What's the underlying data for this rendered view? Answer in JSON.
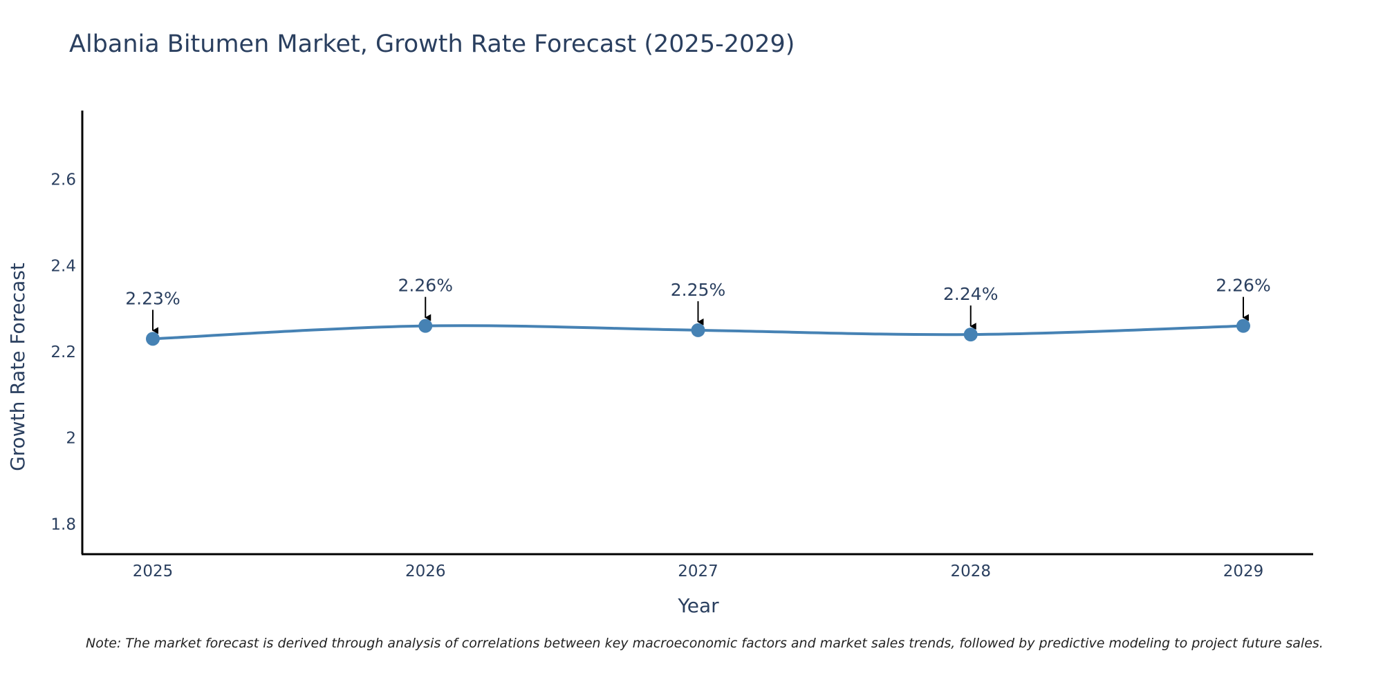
{
  "chart_data": {
    "type": "line",
    "title": "Albania Bitumen Market, Growth Rate Forecast (2025-2029)",
    "xlabel": "Year",
    "ylabel": "Growth Rate Forecast",
    "categories": [
      "2025",
      "2026",
      "2027",
      "2028",
      "2029"
    ],
    "series": [
      {
        "name": "Growth Rate Forecast",
        "values": [
          2.23,
          2.26,
          2.25,
          2.24,
          2.26
        ],
        "labels": [
          "2.23%",
          "2.26%",
          "2.25%",
          "2.24%",
          "2.26%"
        ],
        "color": "#4682b4"
      }
    ],
    "yticks": [
      1.8,
      2,
      2.2,
      2.4,
      2.6
    ],
    "ytick_labels": [
      "1.8",
      "2",
      "2.2",
      "2.4",
      "2.6"
    ],
    "ylim": [
      1.73,
      2.76
    ],
    "grid": false,
    "note": "Note: The market forecast is derived through analysis of correlations between key macroeconomic factors and market sales trends, followed by predictive modeling to project future sales."
  },
  "colors": {
    "line": "#4682b4",
    "text": "#2a3f5f",
    "axis": "#000000"
  }
}
